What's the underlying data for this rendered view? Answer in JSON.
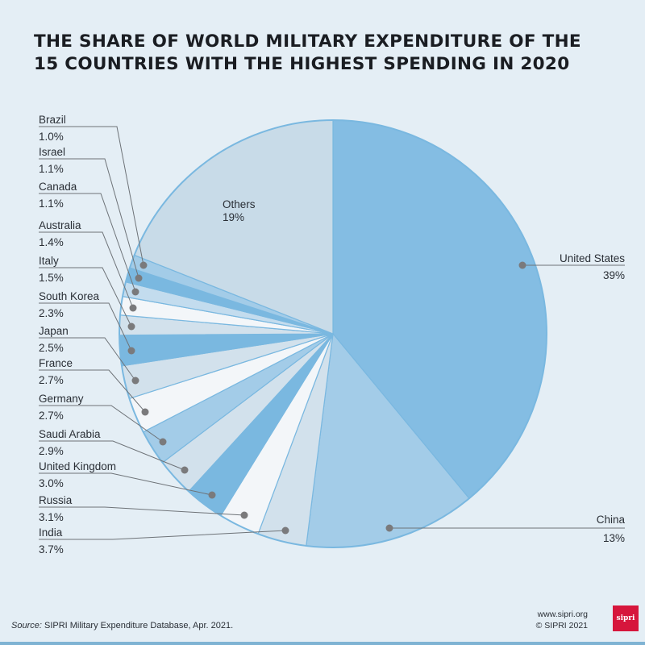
{
  "title": [
    "THE SHARE OF WORLD MILITARY EXPENDITURE OF THE",
    "15 COUNTRIES WITH THE HIGHEST SPENDING IN 2020"
  ],
  "chart_data": {
    "type": "pie",
    "title": "THE SHARE OF WORLD MILITARY EXPENDITURE OF THE 15 COUNTRIES WITH THE HIGHEST SPENDING IN 2020",
    "start": "12 o'clock, clockwise",
    "slices": [
      {
        "label": "United States",
        "value": 39,
        "display": "39%",
        "color": "#84bde3"
      },
      {
        "label": "China",
        "value": 13,
        "display": "13%",
        "color": "#a3cce8"
      },
      {
        "label": "India",
        "value": 3.7,
        "display": "3.7%",
        "color": "#d2e1ec"
      },
      {
        "label": "Russia",
        "value": 3.1,
        "display": "3.1%",
        "color": "#f3f6f9"
      },
      {
        "label": "United Kingdom",
        "value": 3.0,
        "display": "3.0%",
        "color": "#7ab8e0"
      },
      {
        "label": "Saudi Arabia",
        "value": 2.9,
        "display": "2.9%",
        "color": "#d2e1ec"
      },
      {
        "label": "Germany",
        "value": 2.7,
        "display": "2.7%",
        "color": "#a3cce8"
      },
      {
        "label": "France",
        "value": 2.7,
        "display": "2.7%",
        "color": "#f3f6f9"
      },
      {
        "label": "Japan",
        "value": 2.5,
        "display": "2.5%",
        "color": "#d2e1ec"
      },
      {
        "label": "South Korea",
        "value": 2.3,
        "display": "2.3%",
        "color": "#7ab8e0"
      },
      {
        "label": "Italy",
        "value": 1.5,
        "display": "1.5%",
        "color": "#d2e1ec"
      },
      {
        "label": "Australia",
        "value": 1.4,
        "display": "1.4%",
        "color": "#f3f6f9"
      },
      {
        "label": "Canada",
        "value": 1.1,
        "display": "1.1%",
        "color": "#c3dcee"
      },
      {
        "label": "Israel",
        "value": 1.1,
        "display": "1.1%",
        "color": "#7ab8e0"
      },
      {
        "label": "Brazil",
        "value": 1.0,
        "display": "1.0%",
        "color": "#a3cce8"
      },
      {
        "label": "Others",
        "value": 19,
        "display": "19%",
        "color": "#c8dbe8"
      }
    ],
    "outline_color": "#7ab8e0"
  },
  "footer": {
    "source_prefix": "Source:",
    "source_text": " SIPRI Military Expenditure Database, Apr. 2021.",
    "url": "www.sipri.org",
    "copyright": "© SIPRI 2021",
    "logo": "sipri"
  }
}
